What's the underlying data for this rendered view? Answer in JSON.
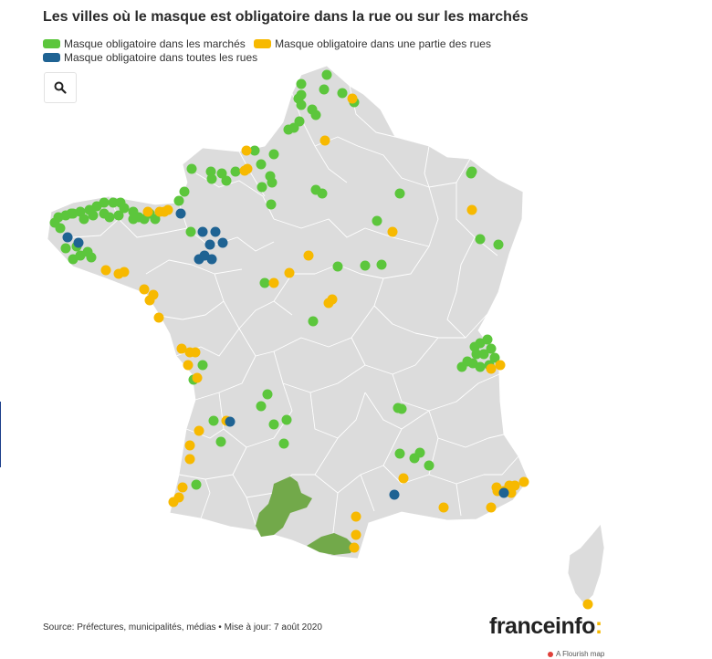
{
  "title": "Les villes où le masque est obligatoire dans la rue ou sur les marchés",
  "legend": [
    {
      "label": "Masque obligatoire dans les marchés",
      "color": "#5cc63c"
    },
    {
      "label": "Masque obligatoire dans une partie des rues",
      "color": "#f7b900"
    },
    {
      "label": "Masque obligatoire dans toutes les rues",
      "color": "#1f6393"
    }
  ],
  "map_colors": {
    "land": "#dcdcdc",
    "border": "#ffffff",
    "zone": "#72a94a",
    "marche": "#5cc63c",
    "partie": "#f7b900",
    "toutes": "#1f6393"
  },
  "search_icon": "magnifier-icon",
  "source": "Source: Préfectures, municipalités, médias • Mise à jour: 7 août 2020",
  "logo": {
    "word": "franceinfo",
    "colon": ":"
  },
  "credit": "A Flourish map"
}
